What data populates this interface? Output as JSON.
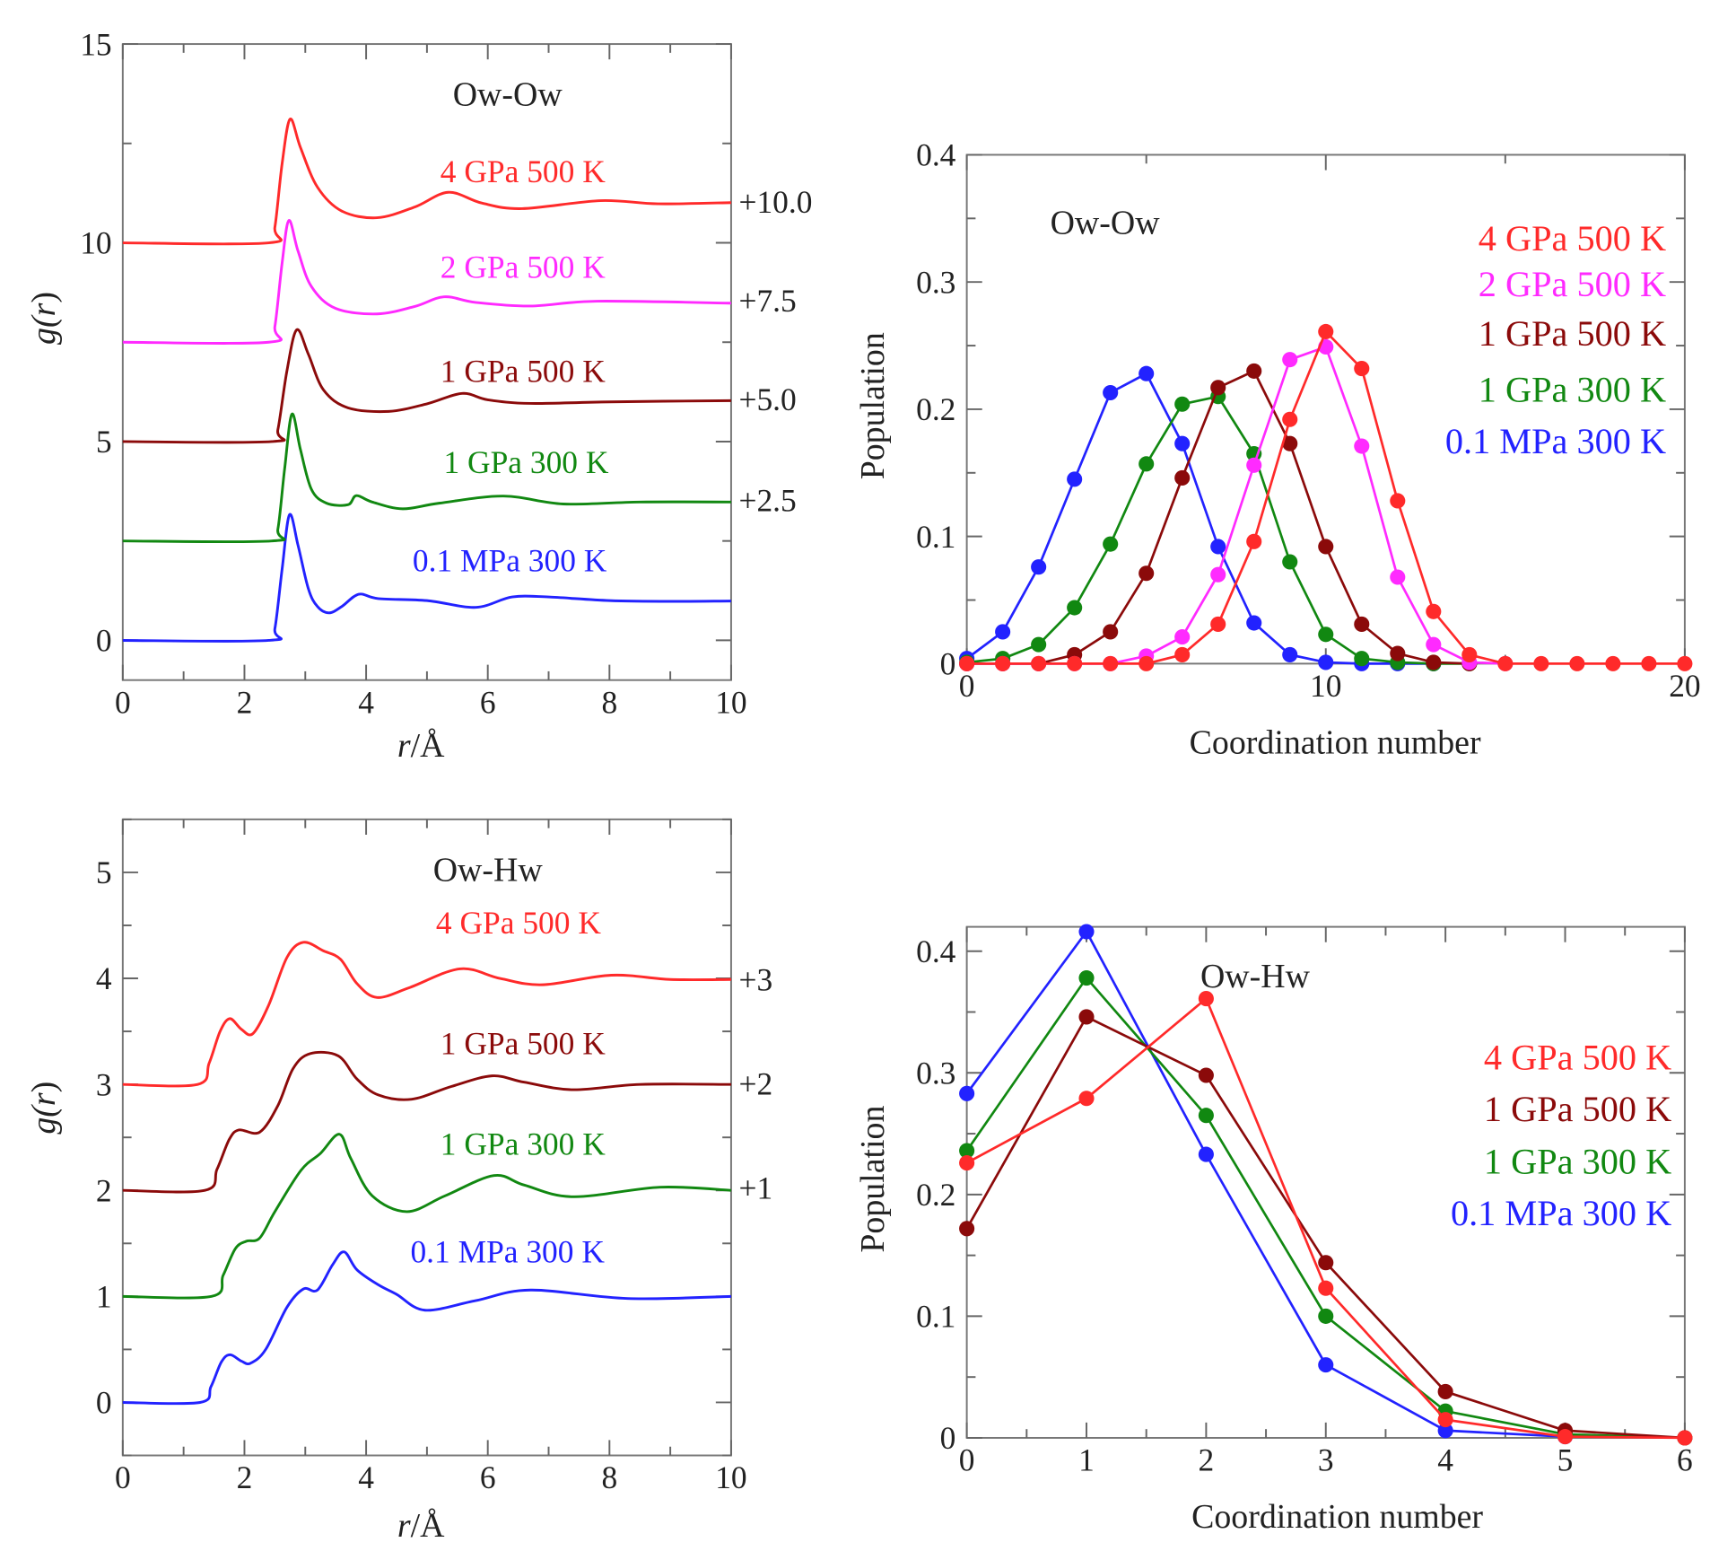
{
  "chart_data": [
    {
      "type": "line",
      "title": "Ow-Ow",
      "xlabel_italic": "r",
      "xlabel_unit": "/Å",
      "ylabel_italic_prefix": "g(",
      "ylabel_var": "r",
      "ylabel_suffix": ")",
      "xlim": [
        0,
        10
      ],
      "ylim": [
        -1,
        15
      ],
      "xticks": [
        "0",
        "2",
        "4",
        "6",
        "8",
        "10"
      ],
      "yticks": [
        "0",
        "5",
        "10",
        "15"
      ],
      "series": [
        {
          "name": "4 GPa 500 K",
          "color": "#ff2a2a",
          "offset": 10.0,
          "offset_label": "+10.0",
          "points": [
            [
              0,
              0
            ],
            [
              2.4,
              0
            ],
            [
              2.5,
              0.4
            ],
            [
              2.62,
              2.0
            ],
            [
              2.75,
              3.11
            ],
            [
              2.92,
              2.4
            ],
            [
              3.2,
              1.4
            ],
            [
              3.6,
              0.8
            ],
            [
              4.18,
              0.63
            ],
            [
              4.8,
              0.9
            ],
            [
              5.35,
              1.27
            ],
            [
              5.9,
              1.0
            ],
            [
              6.56,
              0.86
            ],
            [
              7.85,
              1.06
            ],
            [
              8.8,
              0.98
            ],
            [
              10,
              1.01
            ]
          ]
        },
        {
          "name": "2 GPa 500 K",
          "color": "#ff2aff",
          "offset": 7.5,
          "offset_label": "+7.5",
          "points": [
            [
              0,
              0
            ],
            [
              2.4,
              0
            ],
            [
              2.5,
              0.4
            ],
            [
              2.62,
              2.0
            ],
            [
              2.73,
              3.06
            ],
            [
              2.88,
              2.3
            ],
            [
              3.1,
              1.4
            ],
            [
              3.5,
              0.85
            ],
            [
              4.18,
              0.71
            ],
            [
              4.8,
              0.9
            ],
            [
              5.28,
              1.14
            ],
            [
              5.8,
              1.0
            ],
            [
              6.7,
              0.91
            ],
            [
              7.8,
              1.03
            ],
            [
              10,
              0.98
            ]
          ]
        },
        {
          "name": "1 GPa 500 K",
          "color": "#8b0a0a",
          "offset": 5.0,
          "offset_label": "+5.0",
          "points": [
            [
              0,
              0
            ],
            [
              2.45,
              0
            ],
            [
              2.55,
              0.3
            ],
            [
              2.7,
              1.8
            ],
            [
              2.86,
              2.81
            ],
            [
              3.05,
              2.2
            ],
            [
              3.3,
              1.3
            ],
            [
              3.7,
              0.85
            ],
            [
              4.37,
              0.76
            ],
            [
              5.0,
              0.95
            ],
            [
              5.58,
              1.21
            ],
            [
              6.0,
              1.05
            ],
            [
              6.7,
              0.96
            ],
            [
              8,
              1.0
            ],
            [
              10,
              1.03
            ]
          ]
        },
        {
          "name": "1 GPa 300 K",
          "color": "#118811",
          "offset": 2.5,
          "offset_label": "+2.5",
          "points": [
            [
              0,
              0
            ],
            [
              2.45,
              0
            ],
            [
              2.55,
              0.3
            ],
            [
              2.66,
              1.8
            ],
            [
              2.78,
              3.19
            ],
            [
              2.92,
              2.3
            ],
            [
              3.1,
              1.3
            ],
            [
              3.35,
              0.95
            ],
            [
              3.7,
              0.91
            ],
            [
              3.84,
              1.14
            ],
            [
              4.1,
              0.98
            ],
            [
              4.6,
              0.81
            ],
            [
              5.2,
              0.95
            ],
            [
              6.26,
              1.13
            ],
            [
              7.24,
              0.93
            ],
            [
              8.5,
              0.98
            ],
            [
              10,
              0.98
            ]
          ]
        },
        {
          "name": "0.1 MPa 300 K",
          "color": "#2222ff",
          "offset": 0,
          "offset_label": "",
          "points": [
            [
              0,
              0
            ],
            [
              2.4,
              0
            ],
            [
              2.5,
              0.3
            ],
            [
              2.62,
              1.8
            ],
            [
              2.74,
              3.16
            ],
            [
              2.88,
              2.4
            ],
            [
              3.05,
              1.3
            ],
            [
              3.2,
              0.85
            ],
            [
              3.39,
              0.69
            ],
            [
              3.6,
              0.85
            ],
            [
              3.88,
              1.16
            ],
            [
              4.2,
              1.05
            ],
            [
              5,
              1.0
            ],
            [
              5.8,
              0.83
            ],
            [
              6.4,
              1.09
            ],
            [
              7.0,
              1.09
            ],
            [
              8,
              1.0
            ],
            [
              9,
              0.98
            ],
            [
              10,
              0.99
            ]
          ]
        }
      ]
    },
    {
      "type": "line",
      "title": "Ow-Ow",
      "xlabel": "Coordination number",
      "ylabel": "Population",
      "xlim": [
        0,
        20
      ],
      "ylim": [
        0,
        0.4
      ],
      "xticks": [
        "0",
        "10",
        "20"
      ],
      "yticks": [
        "0",
        "0.1",
        "0.2",
        "0.3",
        "0.4"
      ],
      "legend": "top-right",
      "series": [
        {
          "name": "4 GPa 500 K",
          "color": "#ff2a2a",
          "x": [
            0,
            1,
            2,
            3,
            4,
            5,
            6,
            7,
            8,
            9,
            10,
            11,
            12,
            13,
            14,
            15,
            16,
            17,
            18,
            19,
            20
          ],
          "y": [
            0,
            0,
            0,
            0,
            0,
            0,
            0.007,
            0.031,
            0.096,
            0.192,
            0.261,
            0.232,
            0.128,
            0.041,
            0.007,
            0,
            0,
            0,
            0,
            0,
            0
          ]
        },
        {
          "name": "2 GPa 500 K",
          "color": "#ff2aff",
          "x": [
            0,
            1,
            2,
            3,
            4,
            5,
            6,
            7,
            8,
            9,
            10,
            11,
            12,
            13,
            14,
            15
          ],
          "y": [
            0,
            0,
            0,
            0,
            0,
            0.006,
            0.021,
            0.07,
            0.156,
            0.239,
            0.249,
            0.171,
            0.068,
            0.015,
            0.001,
            0
          ]
        },
        {
          "name": "1 GPa 500 K",
          "color": "#8b0a0a",
          "x": [
            0,
            1,
            2,
            3,
            4,
            5,
            6,
            7,
            8,
            9,
            10,
            11,
            12,
            13,
            14
          ],
          "y": [
            0,
            0,
            0,
            0.007,
            0.025,
            0.071,
            0.146,
            0.217,
            0.23,
            0.173,
            0.092,
            0.031,
            0.008,
            0.001,
            0
          ]
        },
        {
          "name": "1 GPa 300 K",
          "color": "#118811",
          "x": [
            0,
            1,
            2,
            3,
            4,
            5,
            6,
            7,
            8,
            9,
            10,
            11,
            12,
            13,
            14
          ],
          "y": [
            0.001,
            0.004,
            0.015,
            0.044,
            0.094,
            0.157,
            0.204,
            0.21,
            0.165,
            0.08,
            0.023,
            0.004,
            0.001,
            0,
            0
          ]
        },
        {
          "name": "0.1 MPa 300 K",
          "color": "#2222ff",
          "x": [
            0,
            1,
            2,
            3,
            4,
            5,
            6,
            7,
            8,
            9,
            10,
            11,
            12,
            13
          ],
          "y": [
            0.004,
            0.025,
            0.076,
            0.145,
            0.213,
            0.228,
            0.173,
            0.092,
            0.032,
            0.007,
            0.001,
            0,
            0,
            0
          ]
        }
      ]
    },
    {
      "type": "line",
      "title": "Ow-Hw",
      "xlabel_italic": "r",
      "xlabel_unit": "/Å",
      "ylabel_italic_prefix": "g(",
      "ylabel_var": "r",
      "ylabel_suffix": ")",
      "xlim": [
        0,
        10
      ],
      "ylim": [
        -0.5,
        5.5
      ],
      "xticks": [
        "0",
        "2",
        "4",
        "6",
        "8",
        "10"
      ],
      "yticks": [
        "0",
        "1",
        "2",
        "3",
        "4",
        "5"
      ],
      "series": [
        {
          "name": "4 GPa 500 K",
          "color": "#ff2a2a",
          "offset": 3,
          "offset_label": "+3",
          "points": [
            [
              0,
              0
            ],
            [
              1.23,
              0
            ],
            [
              1.42,
              0.2
            ],
            [
              1.6,
              0.5
            ],
            [
              1.76,
              0.62
            ],
            [
              1.95,
              0.52
            ],
            [
              2.14,
              0.48
            ],
            [
              2.4,
              0.75
            ],
            [
              2.7,
              1.2
            ],
            [
              2.97,
              1.34
            ],
            [
              3.3,
              1.26
            ],
            [
              3.58,
              1.18
            ],
            [
              3.85,
              0.95
            ],
            [
              4.18,
              0.82
            ],
            [
              4.7,
              0.91
            ],
            [
              5.54,
              1.09
            ],
            [
              6.2,
              1.0
            ],
            [
              6.9,
              0.94
            ],
            [
              8.03,
              1.03
            ],
            [
              9,
              0.99
            ],
            [
              10,
              0.99
            ]
          ]
        },
        {
          "name": "1 GPa 500 K",
          "color": "#8b0a0a",
          "offset": 2,
          "offset_label": "+2",
          "points": [
            [
              0,
              0
            ],
            [
              1.35,
              0
            ],
            [
              1.55,
              0.2
            ],
            [
              1.75,
              0.48
            ],
            [
              1.91,
              0.57
            ],
            [
              2.25,
              0.55
            ],
            [
              2.55,
              0.8
            ],
            [
              2.8,
              1.15
            ],
            [
              3.08,
              1.29
            ],
            [
              3.54,
              1.27
            ],
            [
              3.85,
              1.05
            ],
            [
              4.2,
              0.9
            ],
            [
              4.75,
              0.86
            ],
            [
              5.4,
              0.98
            ],
            [
              6.07,
              1.08
            ],
            [
              6.6,
              1.02
            ],
            [
              7.4,
              0.95
            ],
            [
              8.5,
              1.0
            ],
            [
              10,
              1.0
            ]
          ]
        },
        {
          "name": "1 GPa 300 K",
          "color": "#118811",
          "offset": 1,
          "offset_label": "+1",
          "points": [
            [
              0,
              0
            ],
            [
              1.46,
              0
            ],
            [
              1.65,
              0.2
            ],
            [
              1.85,
              0.45
            ],
            [
              2.03,
              0.52
            ],
            [
              2.25,
              0.55
            ],
            [
              2.5,
              0.8
            ],
            [
              2.93,
              1.19
            ],
            [
              3.25,
              1.35
            ],
            [
              3.56,
              1.53
            ],
            [
              3.75,
              1.3
            ],
            [
              4.1,
              0.95
            ],
            [
              4.67,
              0.8
            ],
            [
              5.3,
              0.95
            ],
            [
              6.1,
              1.14
            ],
            [
              6.6,
              1.05
            ],
            [
              7.4,
              0.94
            ],
            [
              8.83,
              1.03
            ],
            [
              10,
              1.0
            ]
          ]
        },
        {
          "name": "0.1 MPa 300 K",
          "color": "#2222ff",
          "offset": 0,
          "offset_label": "",
          "points": [
            [
              0,
              0
            ],
            [
              1.27,
              0
            ],
            [
              1.45,
              0.15
            ],
            [
              1.62,
              0.38
            ],
            [
              1.76,
              0.45
            ],
            [
              1.95,
              0.39
            ],
            [
              2.1,
              0.37
            ],
            [
              2.35,
              0.5
            ],
            [
              2.7,
              0.9
            ],
            [
              2.97,
              1.07
            ],
            [
              3.2,
              1.06
            ],
            [
              3.45,
              1.3
            ],
            [
              3.64,
              1.42
            ],
            [
              3.85,
              1.25
            ],
            [
              4.2,
              1.11
            ],
            [
              4.5,
              1.02
            ],
            [
              4.97,
              0.87
            ],
            [
              5.8,
              0.96
            ],
            [
              6.7,
              1.06
            ],
            [
              8.3,
              0.98
            ],
            [
              10,
              1.0
            ]
          ]
        }
      ]
    },
    {
      "type": "line",
      "title": "Ow-Hw",
      "xlabel": "Coordination number",
      "ylabel": "Population",
      "xlim": [
        0,
        6
      ],
      "ylim": [
        0,
        0.42
      ],
      "xticks": [
        "0",
        "1",
        "2",
        "3",
        "4",
        "5",
        "6"
      ],
      "yticks": [
        "0",
        "0.1",
        "0.2",
        "0.3",
        "0.4"
      ],
      "legend": "right",
      "series": [
        {
          "name": "4 GPa 500 K",
          "color": "#ff2a2a",
          "x": [
            0,
            1,
            2,
            3,
            4,
            5,
            6
          ],
          "y": [
            0.226,
            0.279,
            0.361,
            0.123,
            0.015,
            0.001,
            0
          ]
        },
        {
          "name": "1 GPa 500 K",
          "color": "#8b0a0a",
          "x": [
            0,
            1,
            2,
            3,
            4,
            5,
            6
          ],
          "y": [
            0.172,
            0.346,
            0.298,
            0.144,
            0.038,
            0.006,
            0
          ]
        },
        {
          "name": "1 GPa 300 K",
          "color": "#118811",
          "x": [
            0,
            1,
            2,
            3,
            4,
            5,
            6
          ],
          "y": [
            0.236,
            0.378,
            0.265,
            0.1,
            0.022,
            0.003,
            0
          ]
        },
        {
          "name": "0.1 MPa 300 K",
          "color": "#2222ff",
          "x": [
            0,
            1,
            2,
            3,
            4,
            5
          ],
          "y": [
            0.283,
            0.416,
            0.233,
            0.06,
            0.006,
            0.001
          ]
        }
      ]
    }
  ]
}
